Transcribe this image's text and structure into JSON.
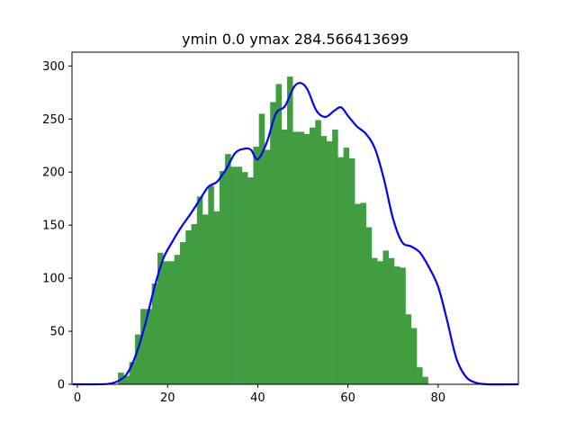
{
  "chart_data": {
    "type": "bar",
    "title": "ymin 0.0 ymax 284.566413699",
    "xlabel": "",
    "ylabel": "",
    "xlim": [
      -1.2,
      97.8
    ],
    "ylim": [
      0,
      313
    ],
    "grid": false,
    "x_ticks": [
      0,
      20,
      40,
      60,
      80
    ],
    "y_ticks": [
      0,
      50,
      100,
      150,
      200,
      250,
      300
    ],
    "bar_color": "#409e40",
    "line_color": "#0000ff",
    "bin_width": 1.25,
    "histogram": {
      "bin_left_edges": [
        9.0,
        10.25,
        11.5,
        12.75,
        14.0,
        15.25,
        16.5,
        17.75,
        19.0,
        20.25,
        21.5,
        22.75,
        24.0,
        25.25,
        26.5,
        27.75,
        29.0,
        30.25,
        31.5,
        32.75,
        34.0,
        35.25,
        36.5,
        37.75,
        39.0,
        40.25,
        41.5,
        42.75,
        44.0,
        45.25,
        46.5,
        47.75,
        49.0,
        50.25,
        51.5,
        52.75,
        54.0,
        55.25,
        56.5,
        57.75,
        59.0,
        60.25,
        61.5,
        62.75,
        64.0,
        65.25,
        66.5,
        67.75,
        69.0,
        70.25,
        71.5,
        72.75,
        74.0,
        75.25,
        76.5,
        77.75,
        79.0,
        80.25,
        81.5,
        82.75,
        84.0,
        85.25,
        86.5
      ],
      "counts": [
        11,
        8,
        21,
        47,
        71,
        71,
        95,
        124,
        116,
        116,
        122,
        134,
        145,
        151,
        177,
        160,
        187,
        163,
        201,
        217,
        205,
        205,
        200,
        195,
        224,
        255,
        221,
        266,
        283,
        240,
        290,
        238,
        238,
        236,
        242,
        249,
        234,
        229,
        240,
        214,
        223,
        213,
        170,
        171,
        148,
        119,
        116,
        126,
        119,
        111,
        110,
        66,
        53,
        16,
        7,
        0,
        0,
        0,
        0,
        0,
        0,
        0,
        0
      ]
    },
    "kde_line": {
      "x": [
        -1,
        4,
        7,
        9,
        11,
        13,
        15,
        17,
        19,
        21,
        23,
        25,
        27,
        29,
        31,
        33,
        35,
        37,
        38.5,
        40,
        42,
        44,
        46,
        48,
        49.5,
        51,
        53,
        55,
        57,
        58.5,
        60,
        62,
        64,
        66,
        68,
        70,
        72,
        74,
        76,
        78,
        80,
        82,
        84,
        86,
        88,
        91,
        97.8
      ],
      "y": [
        0,
        0,
        0.5,
        3,
        10,
        28,
        56,
        90,
        118,
        134,
        148,
        160,
        173,
        186,
        191,
        203,
        218,
        222,
        221,
        212,
        228,
        255,
        262,
        280,
        284,
        278,
        258,
        252,
        258,
        261,
        253,
        243,
        236,
        222,
        193,
        156,
        134,
        130,
        124,
        110,
        92,
        60,
        25,
        8,
        2,
        0,
        0
      ]
    }
  }
}
